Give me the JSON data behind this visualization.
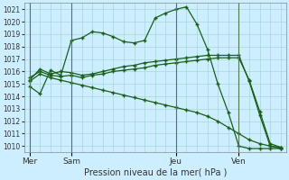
{
  "xlabel": "Pression niveau de la mer( hPa )",
  "bg_color": "#cceeff",
  "grid_color": "#a8d8d8",
  "line_color": "#1a5e1a",
  "vline_color": "#557755",
  "ylim": [
    1009.5,
    1021.5
  ],
  "yticks": [
    1010,
    1011,
    1012,
    1013,
    1014,
    1015,
    1016,
    1017,
    1018,
    1019,
    1020,
    1021
  ],
  "xtick_labels": [
    "Mer",
    "Sam",
    "Jeu",
    "Ven"
  ],
  "xtick_positions": [
    0,
    4,
    14,
    20
  ],
  "vlines": [
    0,
    4,
    14,
    20
  ],
  "num_points": 25,
  "line1": [
    1014.8,
    1014.2,
    1016.1,
    1015.7,
    1018.5,
    1018.7,
    1019.2,
    1019.1,
    1018.8,
    1018.4,
    1018.3,
    1018.5,
    1020.3,
    1020.7,
    1021.0,
    1021.2,
    1019.8,
    1017.8,
    1015.0,
    1012.7,
    1010.0,
    1009.8,
    1009.8,
    1009.8,
    1009.8
  ],
  "line2": [
    1015.3,
    1016.2,
    1015.8,
    1016.0,
    1015.9,
    1015.7,
    1015.8,
    1016.0,
    1016.2,
    1016.4,
    1016.5,
    1016.7,
    1016.8,
    1016.9,
    1017.0,
    1017.1,
    1017.2,
    1017.3,
    1017.3,
    1017.3,
    1017.3,
    1015.2,
    1012.5,
    1010.0,
    1009.8
  ],
  "line3": [
    1015.5,
    1016.0,
    1015.7,
    1015.6,
    1015.7,
    1015.5,
    1015.7,
    1015.8,
    1016.0,
    1016.1,
    1016.2,
    1016.3,
    1016.5,
    1016.6,
    1016.7,
    1016.8,
    1016.9,
    1017.0,
    1017.1,
    1017.1,
    1017.1,
    1015.3,
    1012.8,
    1010.2,
    1009.9
  ],
  "line4": [
    1015.2,
    1015.8,
    1015.5,
    1015.3,
    1015.1,
    1014.9,
    1014.7,
    1014.5,
    1014.3,
    1014.1,
    1013.9,
    1013.7,
    1013.5,
    1013.3,
    1013.1,
    1012.9,
    1012.7,
    1012.4,
    1012.0,
    1011.5,
    1011.0,
    1010.5,
    1010.2,
    1010.0,
    1009.9
  ]
}
